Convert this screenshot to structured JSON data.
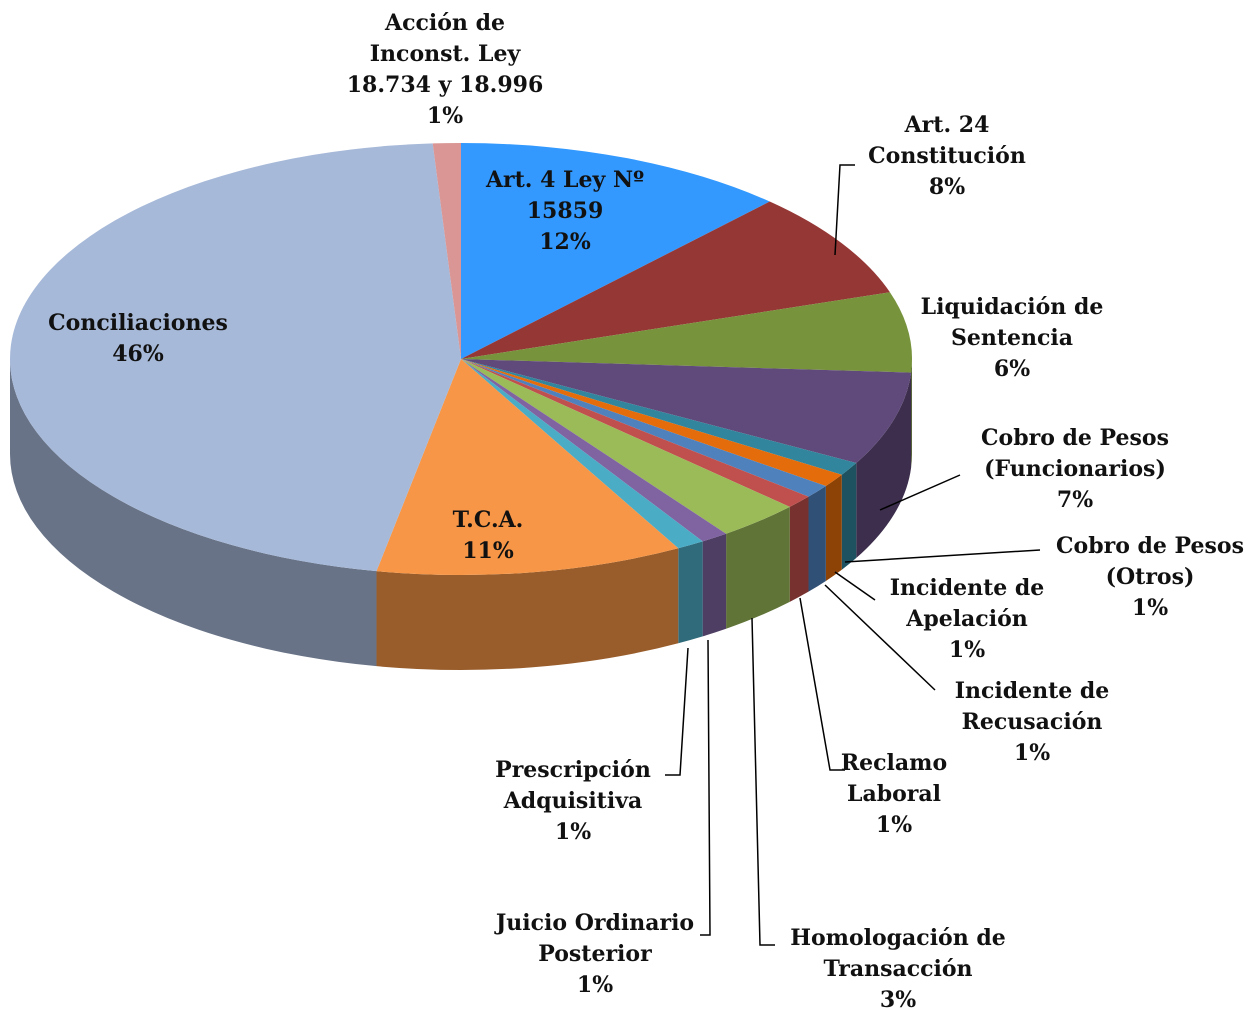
{
  "chart_data": {
    "type": "pie",
    "categories": [
      "Art. 4 Ley Nº\n15859",
      "Art. 24\nConstitución",
      "Liquidación de\nSentencia",
      "Cobro de Pesos\n(Funcionarios)",
      "Cobro de Pesos\n(Otros)",
      "Incidente de\nApelación",
      "Incidente de\nRecusación",
      "Reclamo\nLaboral",
      "Homologación de\nTransacción",
      "Juicio Ordinario\nPosterior",
      "Prescripción\nAdquisitiva",
      "T.C.A.",
      "Conciliaciones",
      "Acción de\nInconst. Ley\n18.734 y 18.996"
    ],
    "values": [
      12,
      8,
      6,
      7,
      1,
      1,
      1,
      1,
      3,
      1,
      1,
      11,
      46,
      1
    ],
    "value_labels": [
      "12%",
      "8%",
      "6%",
      "7%",
      "1%",
      "1%",
      "1%",
      "1%",
      "3%",
      "1%",
      "1%",
      "11%",
      "46%",
      "1%"
    ],
    "colors": [
      "#3399ff",
      "#953735",
      "#77933c",
      "#604a7b",
      "#31859c",
      "#e46c0a",
      "#4f81bd",
      "#c0504d",
      "#9bbb59",
      "#8064a2",
      "#4bacc6",
      "#f79646",
      "#a7b9d9",
      "#d99694"
    ]
  }
}
